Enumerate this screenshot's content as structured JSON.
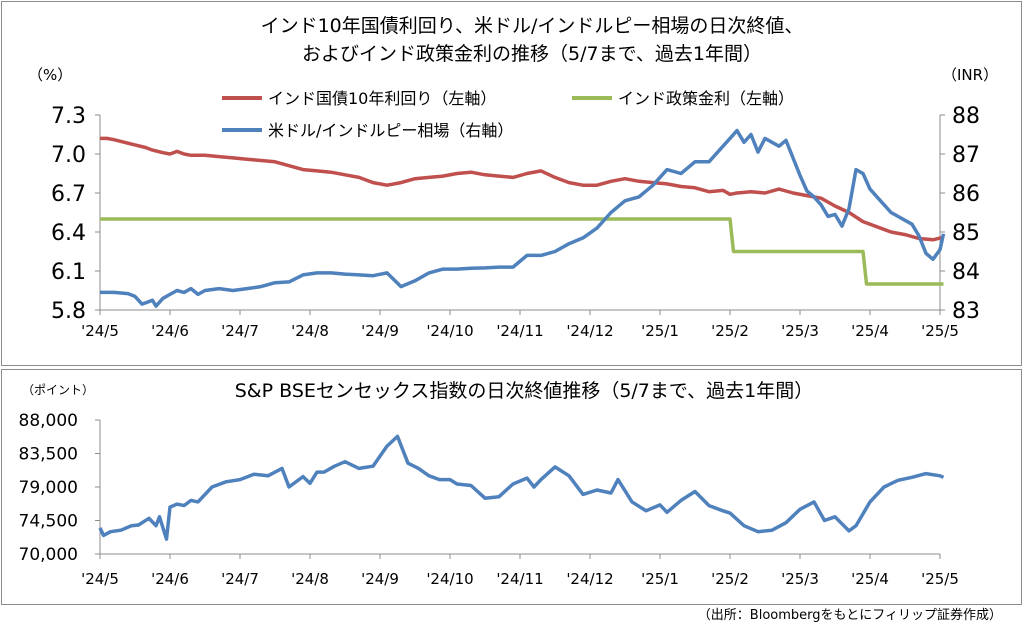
{
  "colors": {
    "bond": "#c0504d",
    "policy": "#9bbb59",
    "fx": "#4f81bd",
    "sensex": "#4f81bd",
    "axis": "#8c8c8c"
  },
  "source_note": "（出所：Bloombergをもとにフィリップ証券作成）",
  "chart_data": [
    {
      "type": "line",
      "title": [
        "インド10年国債利回り、米ドル/インドルピー相場の日次終値、",
        "およびインド政策金利の推移（5/7まで、過去1年間）"
      ],
      "left_unit": "（%）",
      "right_unit": "（INR）",
      "x_tick_labels": [
        "'24/5",
        "'24/6",
        "'24/7",
        "'24/8",
        "'24/9",
        "'24/10",
        "'24/11",
        "'24/12",
        "'25/1",
        "'25/2",
        "'25/3",
        "'25/4",
        "'25/5"
      ],
      "x_range": [
        0,
        12.2
      ],
      "y_left_ticks": [
        "5.8",
        "6.1",
        "6.4",
        "6.7",
        "7.0",
        "7.3"
      ],
      "y_left_range": [
        5.8,
        7.3
      ],
      "y_right_ticks": [
        "83",
        "84",
        "85",
        "86",
        "87",
        "88"
      ],
      "y_right_range": [
        83,
        88
      ],
      "legend": [
        "インド国債10年利回り（左軸）",
        "インド政策金利（左軸）",
        "米ドル/インドルピー相場（右軸）"
      ],
      "series": [
        {
          "name": "インド国債10年利回り（左軸）",
          "axis": "left",
          "x": [
            0,
            0.1,
            0.2,
            0.35,
            0.5,
            0.65,
            0.75,
            0.9,
            1.0,
            1.1,
            1.2,
            1.3,
            1.5,
            1.7,
            1.9,
            2.1,
            2.3,
            2.5,
            2.7,
            2.9,
            3.1,
            3.3,
            3.5,
            3.7,
            3.9,
            4.1,
            4.3,
            4.5,
            4.7,
            4.9,
            5.1,
            5.3,
            5.5,
            5.7,
            5.9,
            6.1,
            6.3,
            6.5,
            6.7,
            6.9,
            7.1,
            7.3,
            7.5,
            7.7,
            7.9,
            8.1,
            8.3,
            8.5,
            8.7,
            8.9,
            9.0,
            9.1,
            9.3,
            9.5,
            9.7,
            9.9,
            10.1,
            10.3,
            10.5,
            10.7,
            10.9,
            11.1,
            11.3,
            11.5,
            11.7,
            11.9,
            12.05
          ],
          "values": [
            7.12,
            7.12,
            7.11,
            7.09,
            7.07,
            7.05,
            7.03,
            7.01,
            7.0,
            7.02,
            7.0,
            6.99,
            6.99,
            6.98,
            6.97,
            6.96,
            6.95,
            6.94,
            6.91,
            6.88,
            6.87,
            6.86,
            6.84,
            6.82,
            6.78,
            6.76,
            6.78,
            6.81,
            6.82,
            6.83,
            6.85,
            6.86,
            6.84,
            6.83,
            6.82,
            6.85,
            6.87,
            6.82,
            6.78,
            6.76,
            6.76,
            6.79,
            6.81,
            6.79,
            6.78,
            6.77,
            6.75,
            6.74,
            6.71,
            6.72,
            6.69,
            6.7,
            6.71,
            6.7,
            6.73,
            6.7,
            6.68,
            6.66,
            6.6,
            6.55,
            6.48,
            6.44,
            6.4,
            6.38,
            6.35,
            6.34,
            6.36
          ]
        },
        {
          "name": "インド政策金利（左軸）",
          "axis": "left",
          "step": true,
          "x": [
            0,
            9.0,
            9.05,
            10.9,
            10.95,
            12.05
          ],
          "values": [
            6.5,
            6.5,
            6.25,
            6.25,
            6.0,
            6.0
          ]
        },
        {
          "name": "米ドル/インドルピー相場（右軸）",
          "axis": "right",
          "x": [
            0,
            0.2,
            0.4,
            0.5,
            0.6,
            0.75,
            0.8,
            0.9,
            1.0,
            1.1,
            1.2,
            1.3,
            1.4,
            1.5,
            1.7,
            1.9,
            2.1,
            2.3,
            2.5,
            2.7,
            2.9,
            3.1,
            3.3,
            3.5,
            3.7,
            3.9,
            4.1,
            4.3,
            4.5,
            4.7,
            4.9,
            5.1,
            5.3,
            5.5,
            5.7,
            5.9,
            6.1,
            6.3,
            6.5,
            6.7,
            6.9,
            7.1,
            7.3,
            7.5,
            7.7,
            7.9,
            8.1,
            8.3,
            8.5,
            8.7,
            8.9,
            9.0,
            9.1,
            9.2,
            9.3,
            9.4,
            9.5,
            9.6,
            9.7,
            9.8,
            9.9,
            10.0,
            10.1,
            10.2,
            10.3,
            10.4,
            10.5,
            10.6,
            10.7,
            10.8,
            10.9,
            11.0,
            11.1,
            11.2,
            11.3,
            11.4,
            11.5,
            11.6,
            11.7,
            11.8,
            11.9,
            12.0,
            12.05
          ],
          "values": [
            83.45,
            83.45,
            83.42,
            83.35,
            83.15,
            83.25,
            83.1,
            83.3,
            83.4,
            83.5,
            83.45,
            83.55,
            83.4,
            83.5,
            83.55,
            83.5,
            83.55,
            83.6,
            83.7,
            83.72,
            83.9,
            83.95,
            83.95,
            83.92,
            83.9,
            83.88,
            83.95,
            83.6,
            83.75,
            83.95,
            84.05,
            84.05,
            84.07,
            84.08,
            84.1,
            84.1,
            84.4,
            84.4,
            84.5,
            84.7,
            84.85,
            85.1,
            85.5,
            85.8,
            85.9,
            86.2,
            86.6,
            86.5,
            86.8,
            86.8,
            87.2,
            87.4,
            87.6,
            87.3,
            87.5,
            87.05,
            87.4,
            87.3,
            87.2,
            87.35,
            86.9,
            86.45,
            86.05,
            85.9,
            85.7,
            85.4,
            85.45,
            85.15,
            85.6,
            86.6,
            86.5,
            86.1,
            85.9,
            85.7,
            85.5,
            85.4,
            85.3,
            85.2,
            84.9,
            84.45,
            84.3,
            84.55,
            84.95
          ]
        }
      ]
    },
    {
      "type": "line",
      "title": "S&P BSEセンセックス指数の日次終値推移（5/7まで、過去1年間）",
      "y_unit": "（ポイント）",
      "x_tick_labels": [
        "'24/5",
        "'24/6",
        "'24/7",
        "'24/8",
        "'24/9",
        "'24/10",
        "'24/11",
        "'24/12",
        "'25/1",
        "'25/2",
        "'25/3",
        "'25/4",
        "'25/5"
      ],
      "x_range": [
        0,
        12.2
      ],
      "y_ticks": [
        "70,000",
        "74,500",
        "79,000",
        "83,500",
        "88,000"
      ],
      "y_range": [
        70000,
        88000
      ],
      "series": [
        {
          "name": "",
          "x": [
            0,
            0.05,
            0.15,
            0.3,
            0.45,
            0.55,
            0.7,
            0.8,
            0.85,
            0.95,
            1.0,
            1.1,
            1.2,
            1.3,
            1.4,
            1.6,
            1.8,
            2.0,
            2.2,
            2.4,
            2.6,
            2.7,
            2.9,
            3.0,
            3.1,
            3.2,
            3.35,
            3.5,
            3.7,
            3.9,
            4.1,
            4.25,
            4.4,
            4.55,
            4.7,
            4.85,
            5.0,
            5.1,
            5.3,
            5.5,
            5.7,
            5.9,
            6.1,
            6.2,
            6.3,
            6.5,
            6.7,
            6.9,
            7.1,
            7.3,
            7.4,
            7.6,
            7.8,
            8.0,
            8.1,
            8.3,
            8.5,
            8.7,
            8.9,
            9.0,
            9.2,
            9.4,
            9.6,
            9.8,
            10.0,
            10.2,
            10.35,
            10.5,
            10.7,
            10.8,
            11.0,
            11.2,
            11.4,
            11.6,
            11.8,
            12.0,
            12.05
          ],
          "values": [
            73500,
            72500,
            73000,
            73200,
            73800,
            73900,
            74800,
            73800,
            75000,
            72000,
            76300,
            76700,
            76500,
            77200,
            77000,
            79000,
            79700,
            80000,
            80700,
            80500,
            81500,
            79000,
            80400,
            79500,
            81000,
            81000,
            81800,
            82400,
            81500,
            81800,
            84500,
            85800,
            82200,
            81500,
            80500,
            80000,
            80000,
            79400,
            79200,
            77500,
            77700,
            79400,
            80200,
            79000,
            80000,
            81700,
            80500,
            78000,
            78600,
            78200,
            80000,
            77000,
            75800,
            76600,
            75600,
            77200,
            78400,
            76500,
            75800,
            75500,
            73800,
            73000,
            73200,
            74200,
            76000,
            77000,
            74500,
            75000,
            73100,
            73800,
            77000,
            79000,
            79900,
            80300,
            80800,
            80500,
            80300
          ]
        }
      ]
    }
  ]
}
